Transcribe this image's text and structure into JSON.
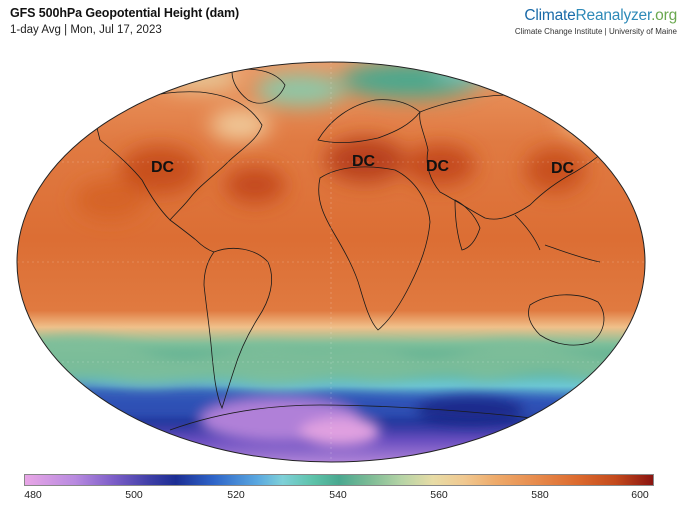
{
  "header": {
    "title": "GFS 500hPa Geopotential Height (dam)",
    "subtitle": "1-day Avg | Mon, Jul 17, 2023",
    "brand_part1": "Climate",
    "brand_part2": "Reanalyzer",
    "brand_part3": ".org",
    "brand_sub": "Climate Change Institute | University of Maine"
  },
  "map": {
    "projection": "Robinson-like world map",
    "annotations": [
      {
        "label": "DC",
        "region": "central North America"
      },
      {
        "label": "DC",
        "region": "North Africa / Mediterranean"
      },
      {
        "label": "DC",
        "region": "Middle East / Iran"
      },
      {
        "label": "DC",
        "region": "East China"
      }
    ]
  },
  "colorbar": {
    "unit": "dam",
    "min": 476,
    "max": 602,
    "ticks": [
      "480",
      "500",
      "520",
      "540",
      "560",
      "580",
      "600"
    ],
    "colors": {
      "low": "#e8a6e6",
      "mid_low": "#1c2e94",
      "mid": "#4aa890",
      "mid_high": "#eeaa6a",
      "high": "#8a1410"
    }
  }
}
